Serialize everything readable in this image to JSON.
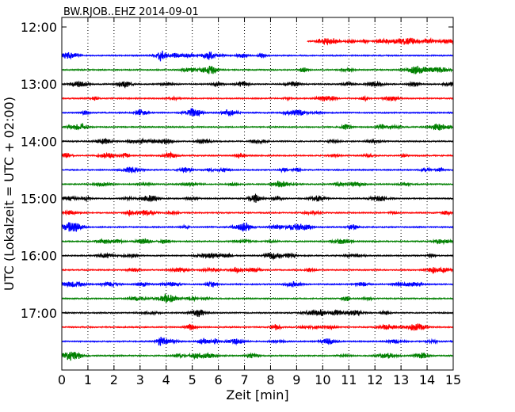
{
  "chart_data": {
    "type": "line",
    "title": "BW.RJOB..EHZ 2014-09-01",
    "xlabel": "Zeit  [min]",
    "ylabel": "UTC (Lokalzeit = UTC + 02:00)",
    "xlim": [
      0,
      15
    ],
    "ylim": [
      "11:50",
      "18:00"
    ],
    "x_ticks": [
      0,
      1,
      2,
      3,
      4,
      5,
      6,
      7,
      8,
      9,
      10,
      11,
      12,
      13,
      14,
      15
    ],
    "y_ticks": [
      "12:00",
      "13:00",
      "14:00",
      "15:00",
      "16:00",
      "17:00"
    ],
    "grid": "vertical dotted",
    "row_interval_minutes": 15,
    "color_cycle": [
      "#ff0000",
      "#0000ff",
      "#008000",
      "#000000"
    ],
    "traces": [
      {
        "start": "12:15",
        "x_start_min": 9.4,
        "x_end_min": 15,
        "color": "#ff0000"
      },
      {
        "start": "12:30",
        "color": "#0000ff"
      },
      {
        "start": "12:45",
        "color": "#008000"
      },
      {
        "start": "13:00",
        "color": "#000000"
      },
      {
        "start": "13:15",
        "color": "#ff0000"
      },
      {
        "start": "13:30",
        "color": "#0000ff"
      },
      {
        "start": "13:45",
        "color": "#008000"
      },
      {
        "start": "14:00",
        "color": "#000000"
      },
      {
        "start": "14:15",
        "color": "#ff0000"
      },
      {
        "start": "14:30",
        "color": "#0000ff"
      },
      {
        "start": "14:45",
        "color": "#008000"
      },
      {
        "start": "15:00",
        "color": "#000000"
      },
      {
        "start": "15:15",
        "color": "#ff0000"
      },
      {
        "start": "15:30",
        "color": "#0000ff"
      },
      {
        "start": "15:45",
        "color": "#008000"
      },
      {
        "start": "16:00",
        "color": "#000000"
      },
      {
        "start": "16:15",
        "color": "#ff0000"
      },
      {
        "start": "16:30",
        "color": "#0000ff"
      },
      {
        "start": "16:45",
        "color": "#008000"
      },
      {
        "start": "17:00",
        "color": "#000000"
      },
      {
        "start": "17:15",
        "color": "#ff0000"
      },
      {
        "start": "17:30",
        "color": "#0000ff"
      },
      {
        "start": "17:45",
        "color": "#008000"
      }
    ]
  }
}
